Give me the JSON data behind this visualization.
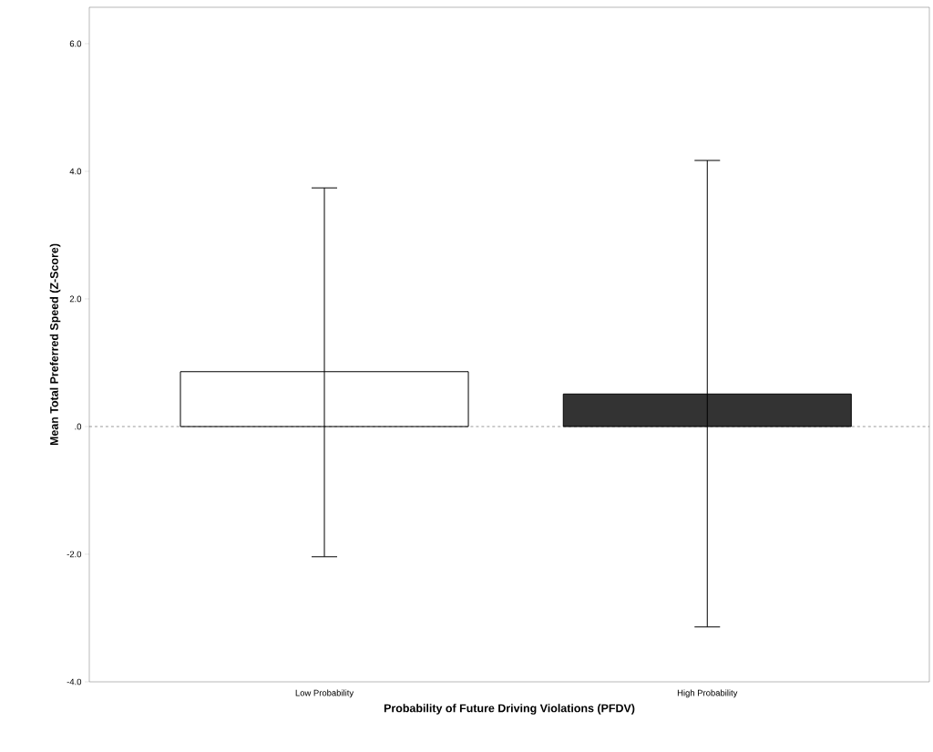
{
  "chart_data": {
    "type": "bar",
    "xlabel": "Probability of Future Driving Violations (PFDV)",
    "ylabel": "Mean Total Preferred Speed (Z-Score)",
    "categories": [
      "Low Probability",
      "High Probability"
    ],
    "values": [
      0.86,
      0.51
    ],
    "colors": [
      "#ffffff",
      "#333333"
    ],
    "errors": [
      [
        -2.04,
        3.74
      ],
      [
        -3.14,
        4.17
      ]
    ],
    "ylim": [
      -4,
      6.57
    ],
    "yticks": [
      {
        "value": -4,
        "label": "-4.0"
      },
      {
        "value": -2,
        "label": "-2.0"
      },
      {
        "value": 0,
        "label": ".0"
      },
      {
        "value": 2,
        "label": "2.0"
      },
      {
        "value": 4,
        "label": "4.0"
      },
      {
        "value": 6,
        "label": "6.0"
      }
    ],
    "ref_lines": [
      {
        "axis": "y",
        "value": 0,
        "line_style": "dashed"
      }
    ],
    "grid": false
  }
}
